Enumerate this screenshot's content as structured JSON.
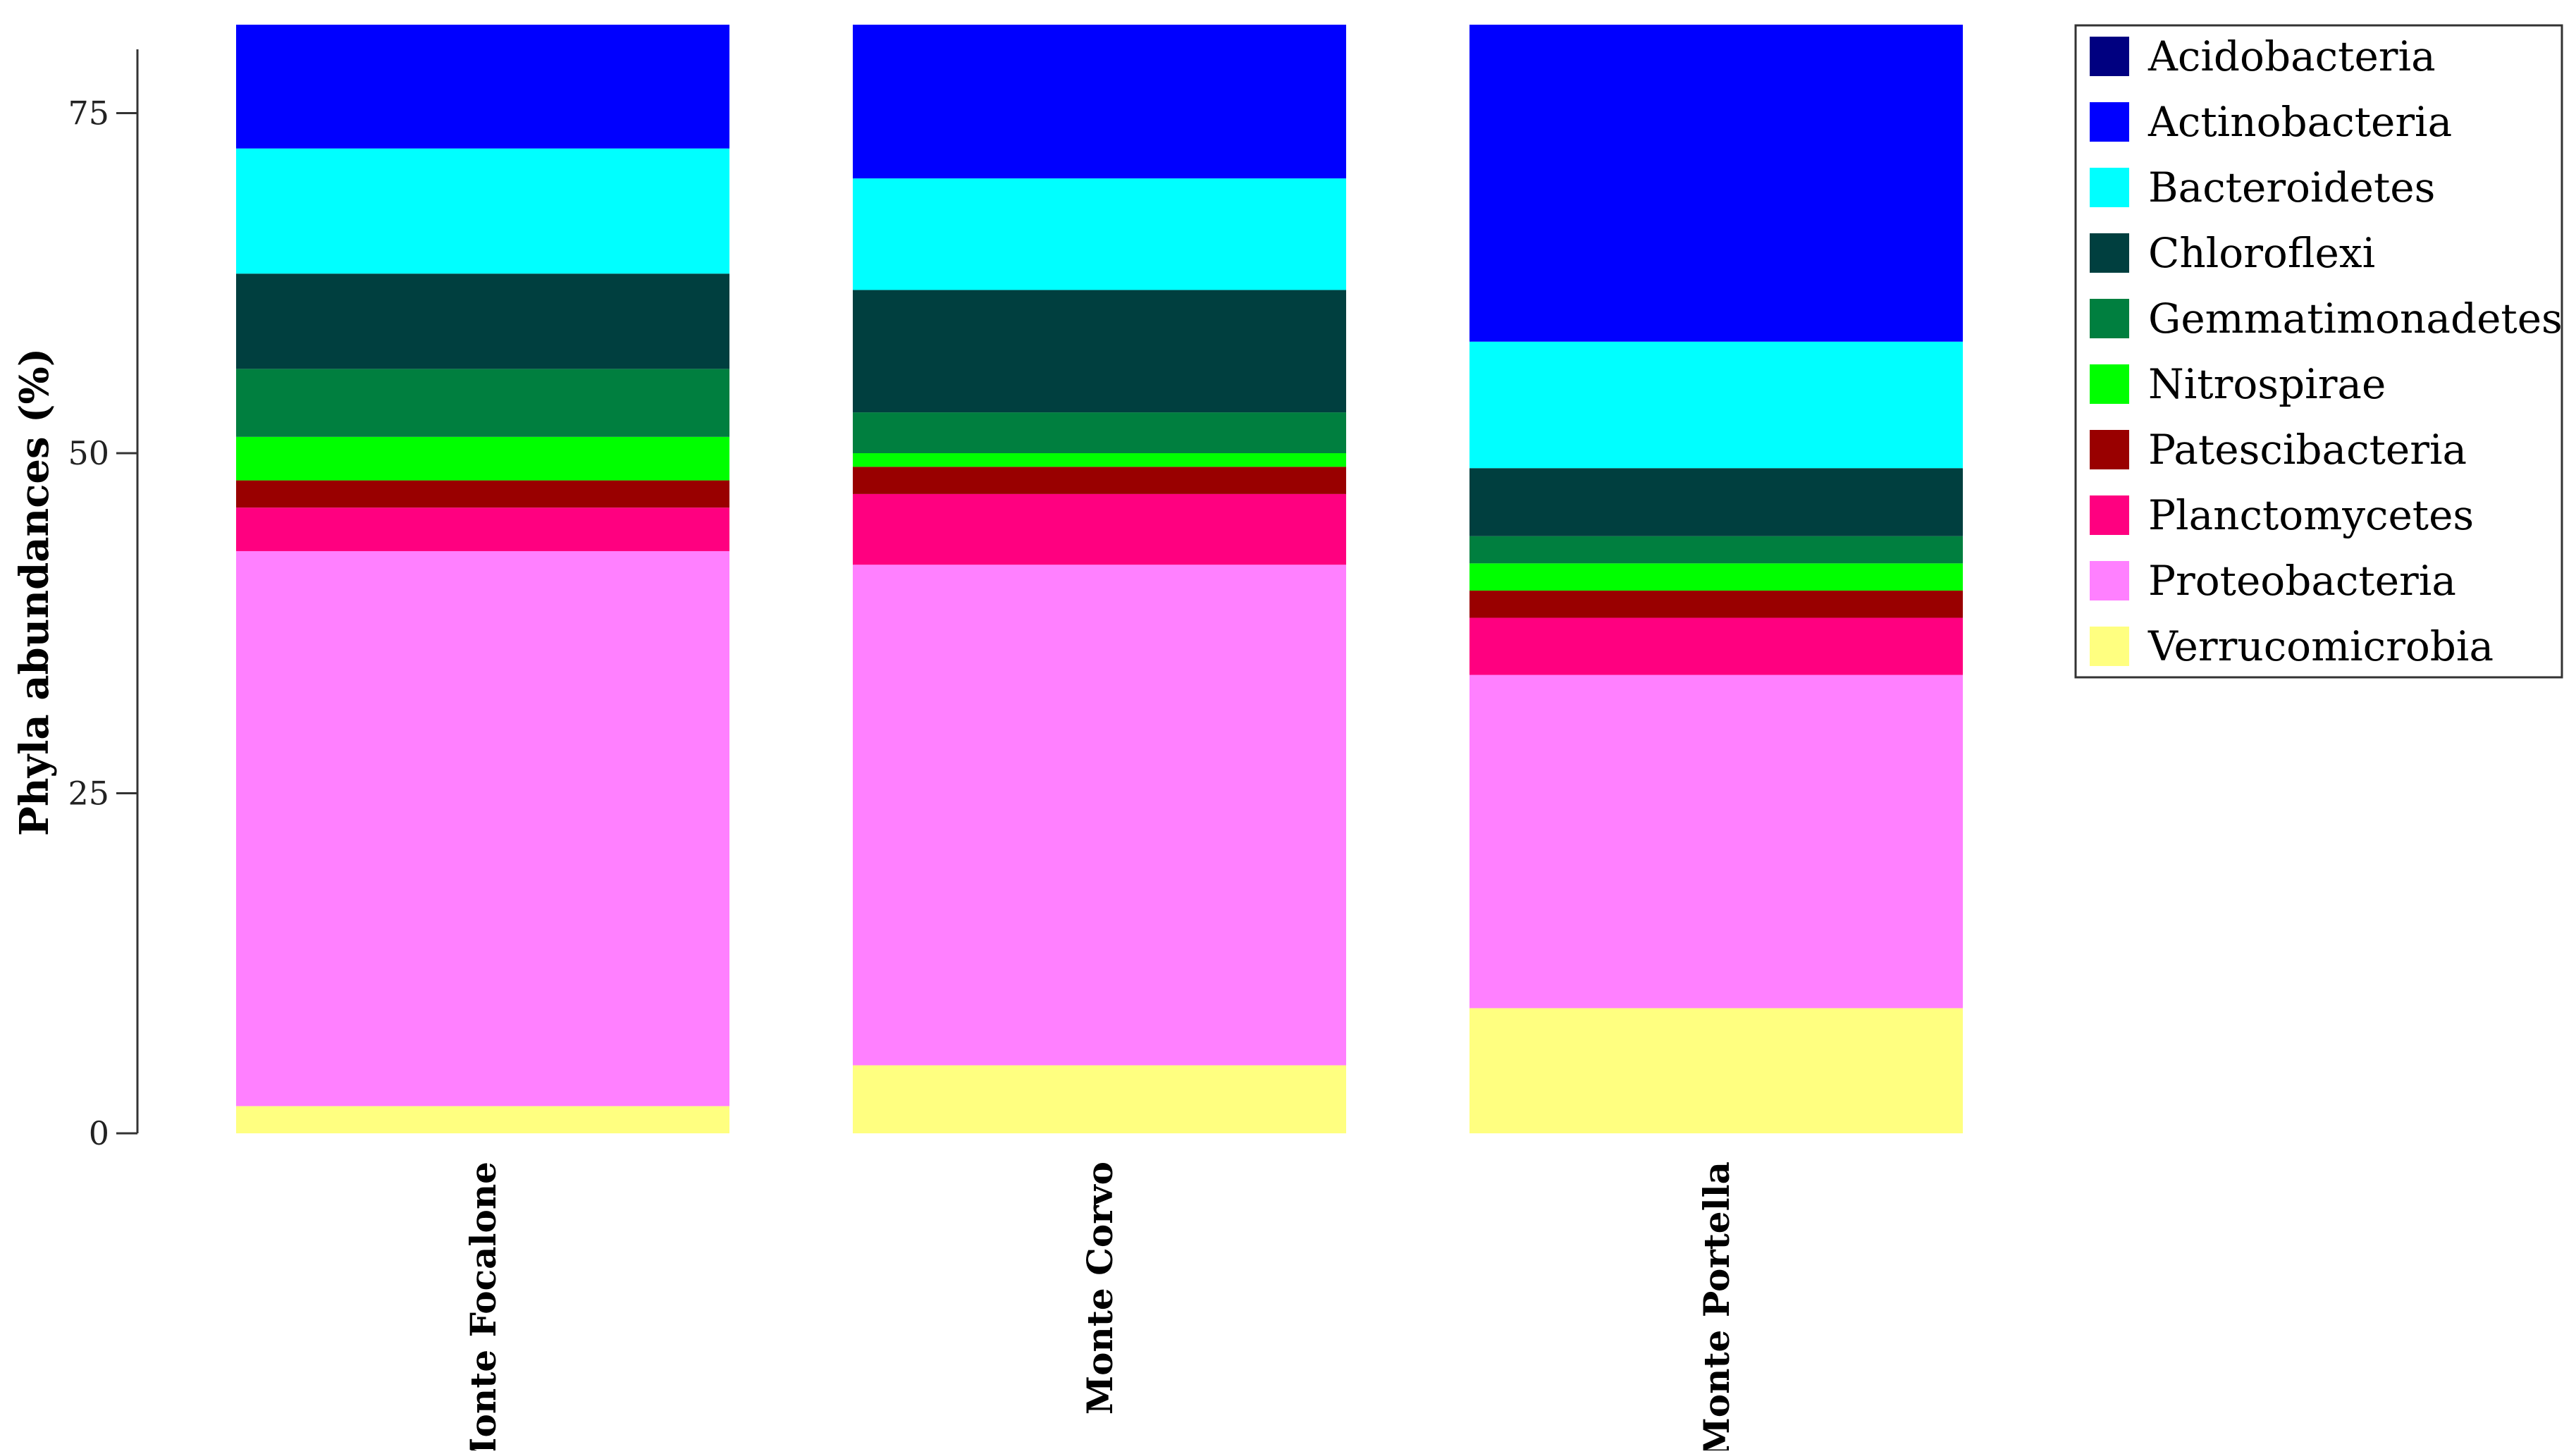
{
  "chart_data": {
    "type": "bar",
    "stacked": true,
    "title": "",
    "xlabel": "",
    "ylabel": "Phyla abundances (%)",
    "ylim": [
      0,
      81.5
    ],
    "yticks": [
      0,
      25,
      50,
      75
    ],
    "categories": [
      "Monte Focalone",
      "Monte Corvo",
      "Monte Portella"
    ],
    "legend_position": "top-right",
    "series": [
      {
        "name": "Verrucomicrobia",
        "color": "#FFFF80",
        "values": [
          2,
          5,
          9.2
        ]
      },
      {
        "name": "Proteobacteria",
        "color": "#FF80FF",
        "values": [
          40.8,
          36.8,
          24.5
        ]
      },
      {
        "name": "Planctomycetes",
        "color": "#FF0080",
        "values": [
          3.2,
          5.2,
          4.2
        ]
      },
      {
        "name": "Patescibacteria",
        "color": "#990000",
        "values": [
          2,
          2,
          2
        ]
      },
      {
        "name": "Nitrospirae",
        "color": "#00FF00",
        "values": [
          3.2,
          1,
          2
        ]
      },
      {
        "name": "Gemmatimonadetes",
        "color": "#007F3F",
        "values": [
          5,
          3,
          2
        ]
      },
      {
        "name": "Chloroflexi",
        "color": "#003F3F",
        "values": [
          7,
          9,
          5
        ]
      },
      {
        "name": "Bacteroidetes",
        "color": "#00FFFF",
        "values": [
          9.2,
          8.2,
          9.3
        ]
      },
      {
        "name": "Actinobacteria",
        "color": "#0000FF",
        "values": [
          9.1,
          11.3,
          23.3
        ]
      },
      {
        "name": "Acidobacteria",
        "color": "#000080",
        "values": [
          0,
          0,
          0
        ]
      }
    ],
    "legend_order": [
      "Acidobacteria",
      "Actinobacteria",
      "Bacteroidetes",
      "Chloroflexi",
      "Gemmatimonadetes",
      "Nitrospirae",
      "Patescibacteria",
      "Planctomycetes",
      "Proteobacteria",
      "Verrucomicrobia"
    ]
  }
}
